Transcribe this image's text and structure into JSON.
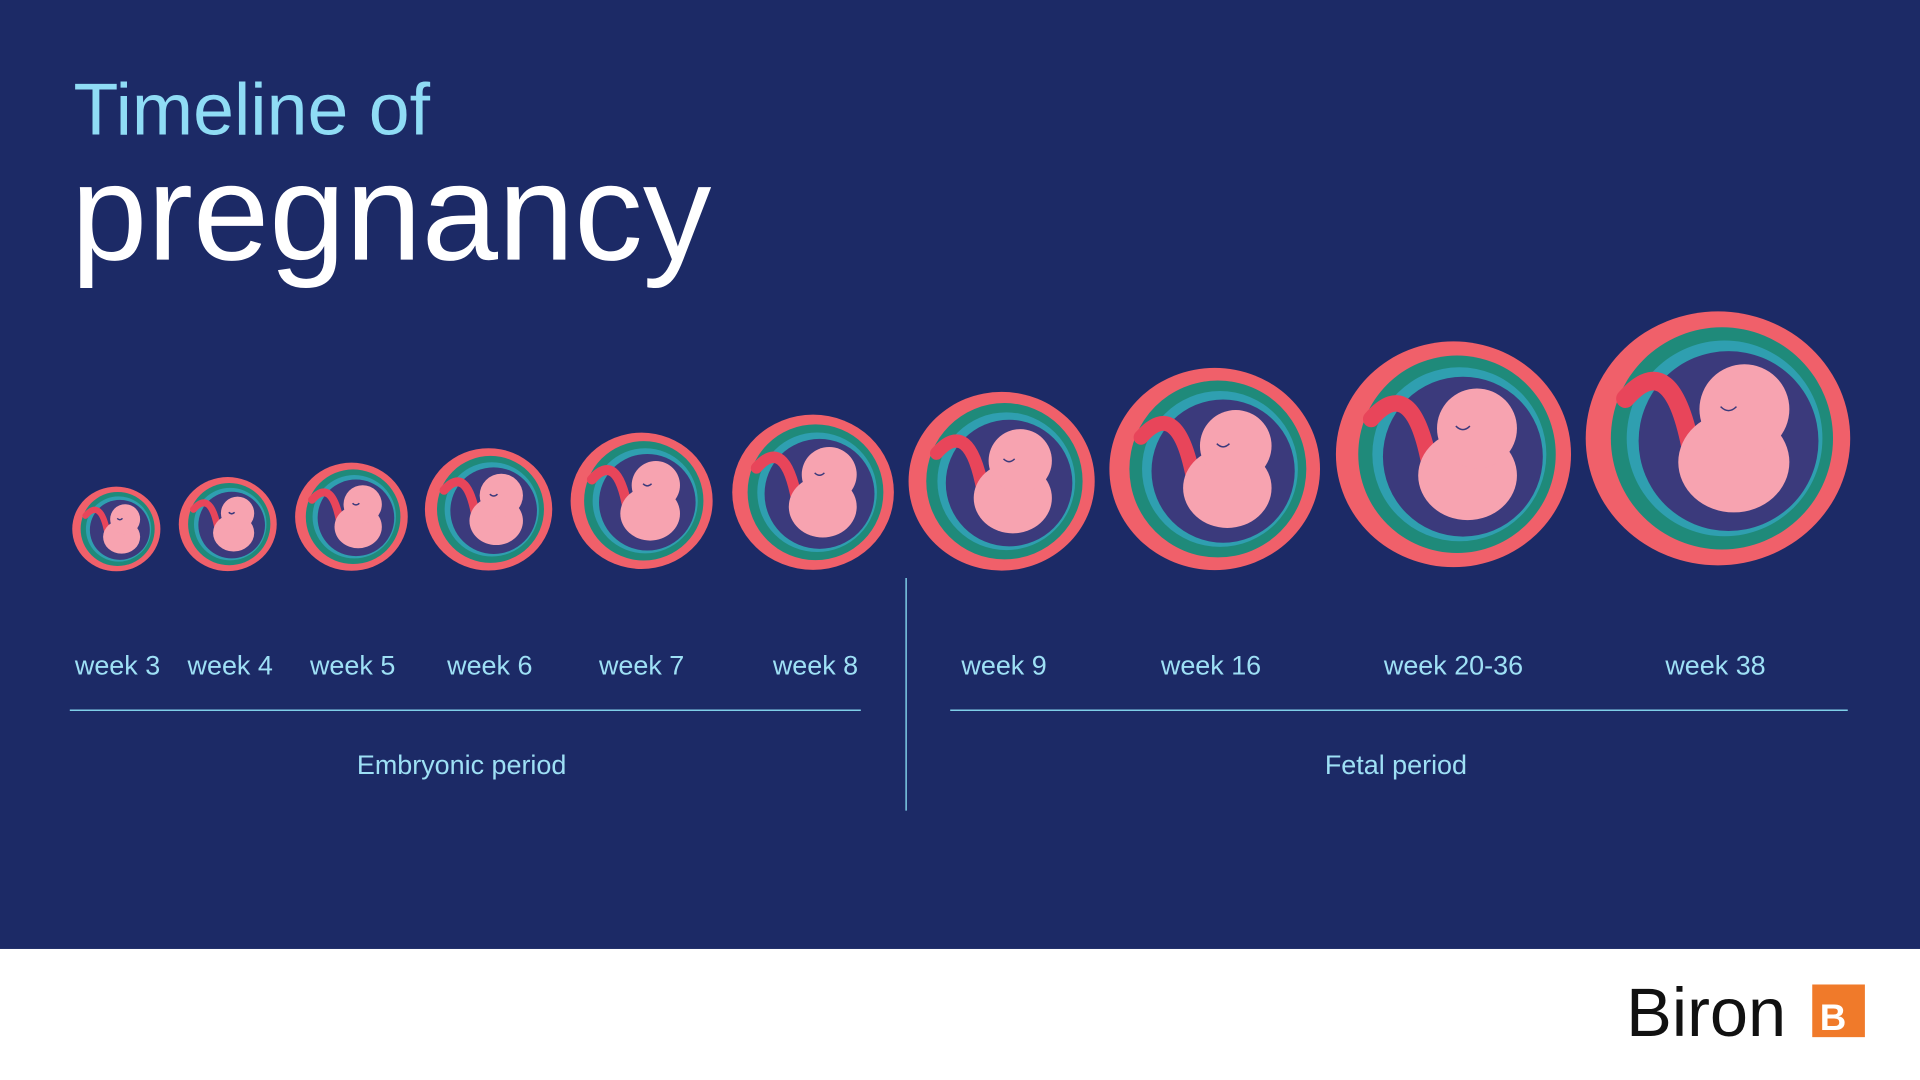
{
  "header": {
    "title_line1": "Timeline of",
    "title_line2": "pregnancy"
  },
  "stages": [
    {
      "label": "week 3"
    },
    {
      "label": "week 4"
    },
    {
      "label": "week 5"
    },
    {
      "label": "week 6"
    },
    {
      "label": "week 7"
    },
    {
      "label": "week 8"
    },
    {
      "label": "week 9"
    },
    {
      "label": "week 16"
    },
    {
      "label": "week 20-36"
    },
    {
      "label": "week 38"
    }
  ],
  "periods": [
    {
      "label": "Embryonic period"
    },
    {
      "label": "Fetal period"
    }
  ],
  "brand": {
    "name": "Biron",
    "logo_letter": "B"
  }
}
